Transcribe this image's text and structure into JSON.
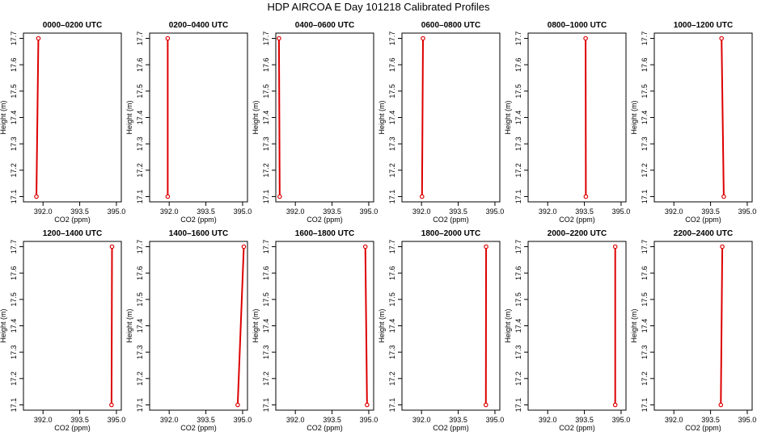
{
  "title": "HDP AIRCOA E  Day 101218  Calibrated Profiles",
  "chart_data": {
    "type": "line",
    "xlabel": "CO2 (ppm)",
    "ylabel": "Height (m)",
    "xlim": [
      391.2,
      395.2
    ],
    "ylim": [
      17.08,
      17.72
    ],
    "xticks": [
      392.0,
      393.5,
      395.0
    ],
    "yticks": [
      17.1,
      17.2,
      17.3,
      17.4,
      17.5,
      17.6,
      17.7
    ],
    "xtick_labels": [
      "392.0",
      "393.5",
      "395.0"
    ],
    "ytick_labels": [
      "17.1",
      "17.2",
      "17.3",
      "17.4",
      "17.5",
      "17.6",
      "17.7"
    ],
    "line_color": "#dd0000",
    "marker_color": "#dd0000",
    "panels": [
      {
        "title": "0000–0200 UTC",
        "x": [
          391.73,
          391.81
        ],
        "y": [
          17.1,
          17.7
        ]
      },
      {
        "title": "0200–0400 UTC",
        "x": [
          391.94,
          391.94
        ],
        "y": [
          17.1,
          17.7
        ]
      },
      {
        "title": "0400–0600 UTC",
        "x": [
          391.36,
          391.33
        ],
        "y": [
          17.1,
          17.7
        ]
      },
      {
        "title": "0600–0800 UTC",
        "x": [
          392.02,
          392.06
        ],
        "y": [
          17.1,
          17.7
        ]
      },
      {
        "title": "0800–1000 UTC",
        "x": [
          393.56,
          393.55
        ],
        "y": [
          17.1,
          17.7
        ]
      },
      {
        "title": "1000–1200 UTC",
        "x": [
          394.04,
          393.95
        ],
        "y": [
          17.1,
          17.7
        ]
      },
      {
        "title": "1200–1400 UTC",
        "x": [
          394.8,
          394.82
        ],
        "y": [
          17.1,
          17.7
        ]
      },
      {
        "title": "1400–1600 UTC",
        "x": [
          394.8,
          395.05
        ],
        "y": [
          17.1,
          17.7
        ]
      },
      {
        "title": "1600–1800 UTC",
        "x": [
          394.93,
          394.86
        ],
        "y": [
          17.1,
          17.7
        ]
      },
      {
        "title": "1800–2000 UTC",
        "x": [
          394.63,
          394.64
        ],
        "y": [
          17.1,
          17.7
        ]
      },
      {
        "title": "2000–2200 UTC",
        "x": [
          394.76,
          394.76
        ],
        "y": [
          17.1,
          17.7
        ]
      },
      {
        "title": "2200–2400 UTC",
        "x": [
          393.92,
          393.98
        ],
        "y": [
          17.1,
          17.7
        ]
      }
    ]
  }
}
